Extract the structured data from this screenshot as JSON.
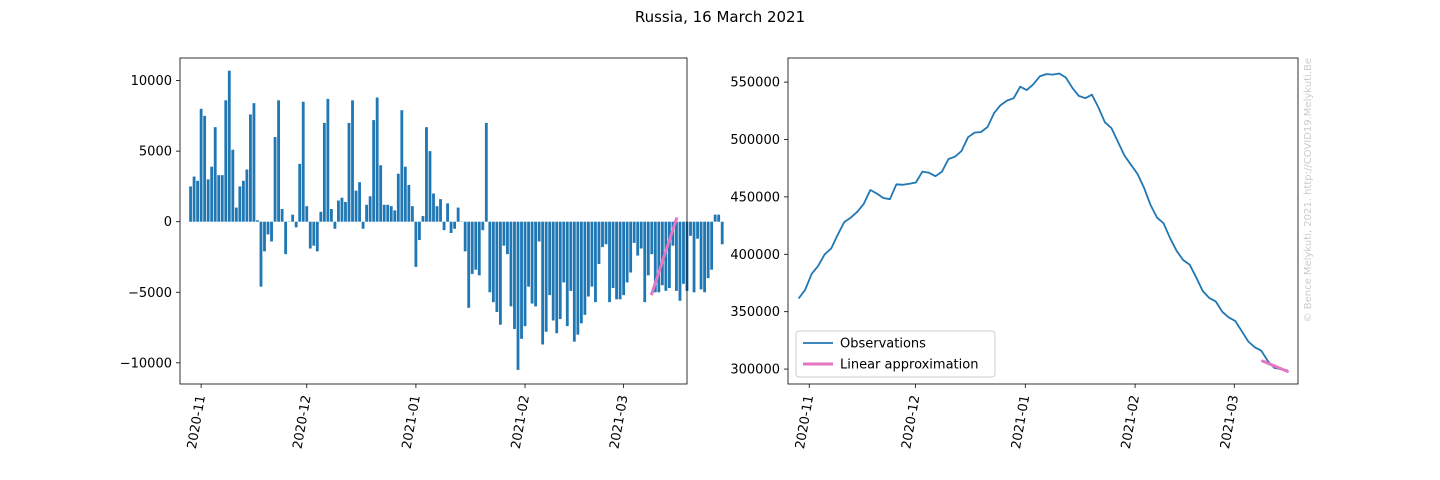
{
  "figure": {
    "title": "Russia, 16 March 2021",
    "watermark": "© Bence Melykuti, 2021. http://COVID19.Melykuti.Be"
  },
  "chart_data": [
    {
      "type": "bar",
      "x_start": "2020-10-29",
      "x_step_days": 1,
      "xlim": [
        "2020-10-26",
        "2021-03-19"
      ],
      "ylim": [
        -11500,
        11600
      ],
      "yticks": [
        -10000,
        -5000,
        0,
        5000,
        10000
      ],
      "ytick_labels": [
        "−10000",
        "−5000",
        "0",
        "5000",
        "10000"
      ],
      "xticks": [
        "2020-11-01",
        "2020-12-01",
        "2021-01-01",
        "2021-02-01",
        "2021-03-01"
      ],
      "xtick_labels": [
        "2020-11",
        "2020-12",
        "2021-01",
        "2021-02",
        "2021-03"
      ],
      "bar_color": "#1f77b4",
      "values": [
        2500,
        3200,
        2900,
        8000,
        7500,
        3000,
        3900,
        6700,
        3300,
        3300,
        8600,
        10700,
        5100,
        1000,
        2500,
        2900,
        3700,
        7600,
        8400,
        100,
        -4600,
        -2100,
        -900,
        -1400,
        6000,
        8600,
        900,
        -2300,
        0,
        500,
        -400,
        4100,
        8500,
        1100,
        -1900,
        -1700,
        -2100,
        700,
        7000,
        8700,
        900,
        -500,
        1500,
        1700,
        1400,
        7000,
        8600,
        2200,
        2800,
        -500,
        1200,
        1800,
        7200,
        8800,
        4000,
        1200,
        1200,
        1100,
        800,
        3400,
        7900,
        3900,
        2600,
        1100,
        -3200,
        -1300,
        400,
        6700,
        5000,
        2000,
        1100,
        1600,
        -600,
        1300,
        -800,
        -500,
        1000,
        0,
        -2100,
        -6100,
        -3700,
        -3400,
        -3800,
        -600,
        7000,
        -5000,
        -5700,
        -6400,
        -7300,
        -1700,
        -2300,
        -6000,
        -7600,
        -10500,
        -8300,
        -7400,
        -4600,
        -5800,
        -6000,
        -1400,
        -8700,
        -7800,
        -5200,
        -7000,
        -7900,
        -6900,
        -4300,
        -7400,
        -4900,
        -8500,
        -8000,
        -7200,
        -6600,
        -5300,
        -4600,
        -5700,
        -3000,
        -1800,
        -1600,
        -5700,
        -4700,
        -5500,
        -5500,
        -5200,
        -4300,
        -3600,
        -1500,
        -2400,
        -1900,
        -5700,
        -3800,
        -2300,
        -5000,
        -5000,
        -4500,
        -4900,
        -4700,
        -1700,
        -4900,
        -5600,
        -4400,
        -4900,
        -1000,
        -5000,
        -1200,
        -4800,
        -5000,
        -4000,
        -3400,
        500,
        500,
        -1600
      ],
      "fit": {
        "name": "Linear approximation",
        "color": "#e377c2",
        "x": [
          "2021-03-09",
          "2021-03-16"
        ],
        "y": [
          -5100,
          200
        ]
      }
    },
    {
      "type": "line",
      "x_start": "2020-10-29",
      "x_step_days": 1,
      "xlim": [
        "2020-10-26",
        "2021-03-19"
      ],
      "ylim": [
        287000,
        571000
      ],
      "yticks": [
        300000,
        350000,
        400000,
        450000,
        500000,
        550000
      ],
      "ytick_labels": [
        "300000",
        "350000",
        "400000",
        "450000",
        "500000",
        "550000"
      ],
      "xticks": [
        "2020-11-01",
        "2020-12-01",
        "2021-01-01",
        "2021-02-01",
        "2021-03-01"
      ],
      "xtick_labels": [
        "2020-11",
        "2020-12",
        "2021-01",
        "2021-02",
        "2021-03"
      ],
      "series": [
        {
          "name": "Observations",
          "color": "#1f77b4",
          "anchors": [
            [
              "2020-10-29",
              361500
            ],
            [
              "2020-11-02",
              369000
            ],
            [
              "2020-11-04",
              383000
            ],
            [
              "2020-11-06",
              390000
            ],
            [
              "2020-11-08",
              400000
            ],
            [
              "2020-11-10",
              405000
            ],
            [
              "2020-11-12",
              417000
            ],
            [
              "2020-11-14",
              428000
            ],
            [
              "2020-11-16",
              432000
            ],
            [
              "2020-11-18",
              437000
            ],
            [
              "2020-11-20",
              444000
            ],
            [
              "2020-11-22",
              456000
            ],
            [
              "2020-11-24",
              453000
            ],
            [
              "2020-11-26",
              449000
            ],
            [
              "2020-11-28",
              448000
            ],
            [
              "2020-11-30",
              461000
            ],
            [
              "2020-12-02",
              460500
            ],
            [
              "2020-12-04",
              461500
            ],
            [
              "2020-12-06",
              462500
            ],
            [
              "2020-12-08",
              472000
            ],
            [
              "2020-12-10",
              471000
            ],
            [
              "2020-12-12",
              468000
            ],
            [
              "2020-12-14",
              472000
            ],
            [
              "2020-12-16",
              483000
            ],
            [
              "2020-12-18",
              485000
            ],
            [
              "2020-12-20",
              490000
            ],
            [
              "2020-12-22",
              502000
            ],
            [
              "2020-12-24",
              506000
            ],
            [
              "2020-12-26",
              506500
            ],
            [
              "2020-12-28",
              511000
            ],
            [
              "2020-12-30",
              523000
            ],
            [
              "2021-01-01",
              530000
            ],
            [
              "2021-01-03",
              534000
            ],
            [
              "2021-01-05",
              536000
            ],
            [
              "2021-01-07",
              546000
            ],
            [
              "2021-01-09",
              543000
            ],
            [
              "2021-01-11",
              548000
            ],
            [
              "2021-01-13",
              555000
            ],
            [
              "2021-01-15",
              557000
            ],
            [
              "2021-01-17",
              556500
            ],
            [
              "2021-01-19",
              557500
            ],
            [
              "2021-01-21",
              554000
            ],
            [
              "2021-01-23",
              545000
            ],
            [
              "2021-01-25",
              538000
            ],
            [
              "2021-01-27",
              536000
            ],
            [
              "2021-01-29",
              539000
            ],
            [
              "2021-01-31",
              528000
            ],
            [
              "2021-02-02",
              515000
            ],
            [
              "2021-02-04",
              510000
            ],
            [
              "2021-02-06",
              498000
            ],
            [
              "2021-02-08",
              486000
            ],
            [
              "2021-02-10",
              478000
            ],
            [
              "2021-02-12",
              470000
            ],
            [
              "2021-02-14",
              458000
            ],
            [
              "2021-02-16",
              443000
            ],
            [
              "2021-02-18",
              432000
            ],
            [
              "2021-02-20",
              427000
            ],
            [
              "2021-02-22",
              414000
            ],
            [
              "2021-02-24",
              403000
            ],
            [
              "2021-02-26",
              395000
            ],
            [
              "2021-02-28",
              391000
            ],
            [
              "2021-03-02",
              380000
            ],
            [
              "2021-03-04",
              368000
            ],
            [
              "2021-03-06",
              362000
            ],
            [
              "2021-03-08",
              359000
            ],
            [
              "2021-03-10",
              350000
            ],
            [
              "2021-03-12",
              345000
            ],
            [
              "2021-03-14",
              342000
            ],
            [
              "2021-03-16",
              333000
            ],
            [
              "2021-03-18",
              324000
            ],
            [
              "2021-03-20",
              319000
            ],
            [
              "2021-03-22",
              316000
            ],
            [
              "2021-03-24",
              307000
            ],
            [
              "2021-03-26",
              301000
            ],
            [
              "2021-03-28",
              300000
            ],
            [
              "2021-03-30",
              299000
            ]
          ]
        },
        {
          "name": "Linear approximation",
          "color": "#e377c2",
          "x": [
            "2021-03-09",
            "2021-03-16"
          ],
          "y": [
            307000,
            298000
          ]
        }
      ],
      "legend_position": "lower-left"
    }
  ]
}
